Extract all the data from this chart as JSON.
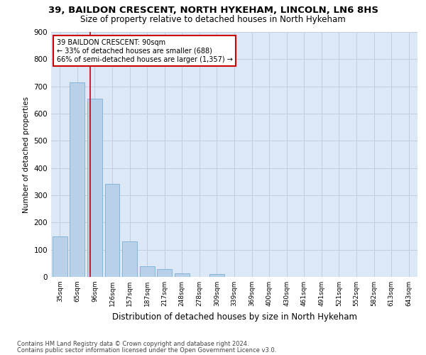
{
  "title_line1": "39, BAILDON CRESCENT, NORTH HYKEHAM, LINCOLN, LN6 8HS",
  "title_line2": "Size of property relative to detached houses in North Hykeham",
  "xlabel": "Distribution of detached houses by size in North Hykeham",
  "ylabel": "Number of detached properties",
  "bar_color": "#b8d0e8",
  "bar_edge_color": "#7aafd4",
  "categories": [
    "35sqm",
    "65sqm",
    "96sqm",
    "126sqm",
    "157sqm",
    "187sqm",
    "217sqm",
    "248sqm",
    "278sqm",
    "309sqm",
    "339sqm",
    "369sqm",
    "400sqm",
    "430sqm",
    "461sqm",
    "491sqm",
    "521sqm",
    "552sqm",
    "582sqm",
    "613sqm",
    "643sqm"
  ],
  "values": [
    150,
    715,
    655,
    343,
    130,
    40,
    30,
    12,
    0,
    10,
    0,
    0,
    0,
    0,
    0,
    0,
    0,
    0,
    0,
    0,
    0
  ],
  "ylim": [
    0,
    900
  ],
  "yticks": [
    0,
    100,
    200,
    300,
    400,
    500,
    600,
    700,
    800,
    900
  ],
  "annotation_text_line1": "39 BAILDON CRESCENT: 90sqm",
  "annotation_text_line2": "← 33% of detached houses are smaller (688)",
  "annotation_text_line3": "66% of semi-detached houses are larger (1,357) →",
  "annotation_box_color": "#ffffff",
  "annotation_box_edge_color": "#cc0000",
  "vline_color": "#cc0000",
  "footer_line1": "Contains HM Land Registry data © Crown copyright and database right 2024.",
  "footer_line2": "Contains public sector information licensed under the Open Government Licence v3.0.",
  "background_color": "#ffffff",
  "axes_bg_color": "#dce8f5",
  "grid_color": "#c0cfe0"
}
